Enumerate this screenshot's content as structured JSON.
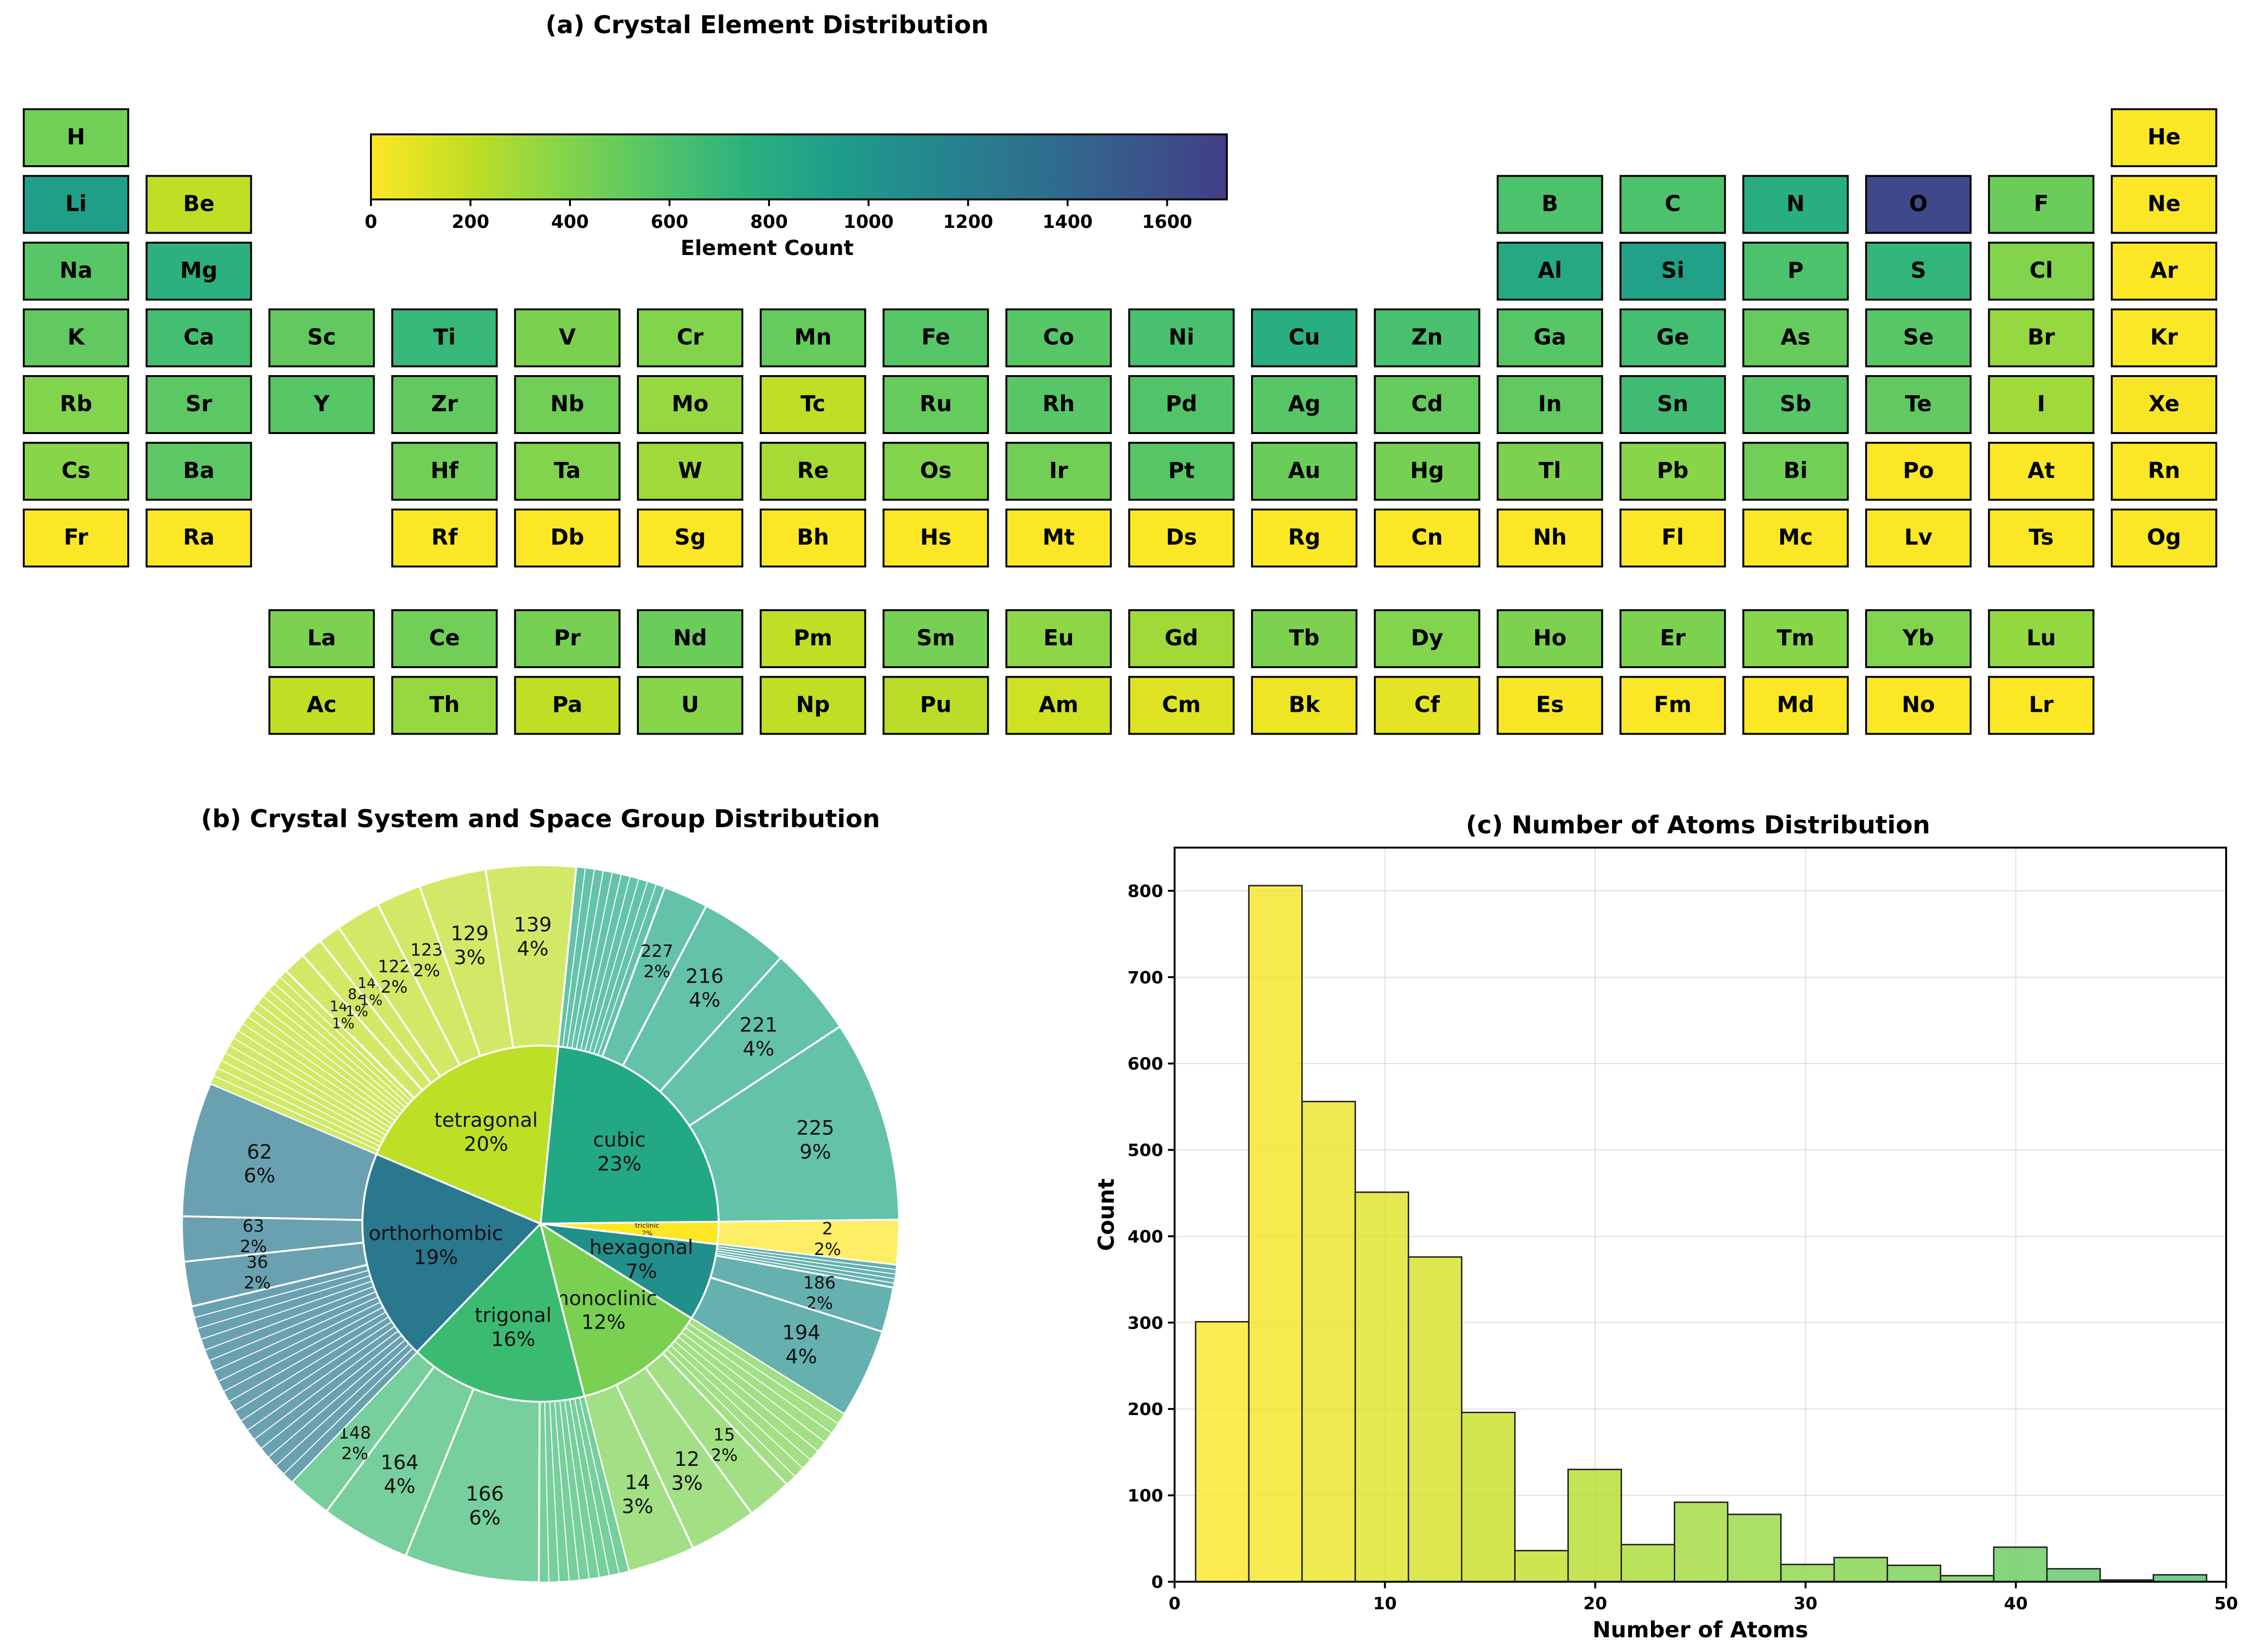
{
  "chart_data": [
    {
      "type": "heatmap",
      "title": "(a) Crystal Element Distribution",
      "colorbar": {
        "label": "Element Count",
        "min": 0,
        "max": 1720,
        "ticks": [
          0,
          200,
          400,
          600,
          800,
          1000,
          1200,
          1400,
          1600
        ],
        "colormap": "viridis_r"
      },
      "elements": [
        {
          "sym": "H",
          "row": 1,
          "col": 1,
          "count": 460
        },
        {
          "sym": "He",
          "row": 1,
          "col": 18,
          "count": 10
        },
        {
          "sym": "Li",
          "row": 2,
          "col": 1,
          "count": 920
        },
        {
          "sym": "Be",
          "row": 2,
          "col": 2,
          "count": 200
        },
        {
          "sym": "B",
          "row": 2,
          "col": 13,
          "count": 600
        },
        {
          "sym": "C",
          "row": 2,
          "col": 14,
          "count": 600
        },
        {
          "sym": "N",
          "row": 2,
          "col": 15,
          "count": 780
        },
        {
          "sym": "O",
          "row": 2,
          "col": 16,
          "count": 1650
        },
        {
          "sym": "F",
          "row": 2,
          "col": 17,
          "count": 480
        },
        {
          "sym": "Ne",
          "row": 2,
          "col": 18,
          "count": 5
        },
        {
          "sym": "Na",
          "row": 3,
          "col": 1,
          "count": 560
        },
        {
          "sym": "Mg",
          "row": 3,
          "col": 2,
          "count": 760
        },
        {
          "sym": "Al",
          "row": 3,
          "col": 13,
          "count": 830
        },
        {
          "sym": "Si",
          "row": 3,
          "col": 14,
          "count": 900
        },
        {
          "sym": "P",
          "row": 3,
          "col": 15,
          "count": 600
        },
        {
          "sym": "S",
          "row": 3,
          "col": 16,
          "count": 720
        },
        {
          "sym": "Cl",
          "row": 3,
          "col": 17,
          "count": 400
        },
        {
          "sym": "Ar",
          "row": 3,
          "col": 18,
          "count": 5
        },
        {
          "sym": "K",
          "row": 4,
          "col": 1,
          "count": 520
        },
        {
          "sym": "Ca",
          "row": 4,
          "col": 2,
          "count": 640
        },
        {
          "sym": "Sc",
          "row": 4,
          "col": 3,
          "count": 520
        },
        {
          "sym": "Ti",
          "row": 4,
          "col": 4,
          "count": 700
        },
        {
          "sym": "V",
          "row": 4,
          "col": 5,
          "count": 420
        },
        {
          "sym": "Cr",
          "row": 4,
          "col": 6,
          "count": 400
        },
        {
          "sym": "Mn",
          "row": 4,
          "col": 7,
          "count": 500
        },
        {
          "sym": "Fe",
          "row": 4,
          "col": 8,
          "count": 560
        },
        {
          "sym": "Co",
          "row": 4,
          "col": 9,
          "count": 560
        },
        {
          "sym": "Ni",
          "row": 4,
          "col": 10,
          "count": 620
        },
        {
          "sym": "Cu",
          "row": 4,
          "col": 11,
          "count": 780
        },
        {
          "sym": "Zn",
          "row": 4,
          "col": 12,
          "count": 620
        },
        {
          "sym": "Ga",
          "row": 4,
          "col": 13,
          "count": 560
        },
        {
          "sym": "Ge",
          "row": 4,
          "col": 14,
          "count": 640
        },
        {
          "sym": "As",
          "row": 4,
          "col": 15,
          "count": 500
        },
        {
          "sym": "Se",
          "row": 4,
          "col": 16,
          "count": 560
        },
        {
          "sym": "Br",
          "row": 4,
          "col": 17,
          "count": 330
        },
        {
          "sym": "Kr",
          "row": 4,
          "col": 18,
          "count": 10
        },
        {
          "sym": "Rb",
          "row": 5,
          "col": 1,
          "count": 400
        },
        {
          "sym": "Sr",
          "row": 5,
          "col": 2,
          "count": 540
        },
        {
          "sym": "Y",
          "row": 5,
          "col": 3,
          "count": 560
        },
        {
          "sym": "Zr",
          "row": 5,
          "col": 4,
          "count": 520
        },
        {
          "sym": "Nb",
          "row": 5,
          "col": 5,
          "count": 460
        },
        {
          "sym": "Mo",
          "row": 5,
          "col": 6,
          "count": 330
        },
        {
          "sym": "Tc",
          "row": 5,
          "col": 7,
          "count": 200
        },
        {
          "sym": "Ru",
          "row": 5,
          "col": 8,
          "count": 500
        },
        {
          "sym": "Rh",
          "row": 5,
          "col": 9,
          "count": 560
        },
        {
          "sym": "Pd",
          "row": 5,
          "col": 10,
          "count": 580
        },
        {
          "sym": "Ag",
          "row": 5,
          "col": 11,
          "count": 560
        },
        {
          "sym": "Cd",
          "row": 5,
          "col": 12,
          "count": 500
        },
        {
          "sym": "In",
          "row": 5,
          "col": 13,
          "count": 520
        },
        {
          "sym": "Sn",
          "row": 5,
          "col": 14,
          "count": 660
        },
        {
          "sym": "Sb",
          "row": 5,
          "col": 15,
          "count": 560
        },
        {
          "sym": "Te",
          "row": 5,
          "col": 16,
          "count": 520
        },
        {
          "sym": "I",
          "row": 5,
          "col": 17,
          "count": 300
        },
        {
          "sym": "Xe",
          "row": 5,
          "col": 18,
          "count": 20
        },
        {
          "sym": "Cs",
          "row": 6,
          "col": 1,
          "count": 380
        },
        {
          "sym": "Ba",
          "row": 6,
          "col": 2,
          "count": 540
        },
        {
          "sym": "Hf",
          "row": 6,
          "col": 4,
          "count": 460
        },
        {
          "sym": "Ta",
          "row": 6,
          "col": 5,
          "count": 400
        },
        {
          "sym": "W",
          "row": 6,
          "col": 6,
          "count": 300
        },
        {
          "sym": "Re",
          "row": 6,
          "col": 7,
          "count": 280
        },
        {
          "sym": "Os",
          "row": 6,
          "col": 8,
          "count": 400
        },
        {
          "sym": "Ir",
          "row": 6,
          "col": 9,
          "count": 460
        },
        {
          "sym": "Pt",
          "row": 6,
          "col": 10,
          "count": 560
        },
        {
          "sym": "Au",
          "row": 6,
          "col": 11,
          "count": 480
        },
        {
          "sym": "Hg",
          "row": 6,
          "col": 12,
          "count": 440
        },
        {
          "sym": "Tl",
          "row": 6,
          "col": 13,
          "count": 420
        },
        {
          "sym": "Pb",
          "row": 6,
          "col": 14,
          "count": 380
        },
        {
          "sym": "Bi",
          "row": 6,
          "col": 15,
          "count": 460
        },
        {
          "sym": "Po",
          "row": 6,
          "col": 16,
          "count": 5
        },
        {
          "sym": "At",
          "row": 6,
          "col": 17,
          "count": 5
        },
        {
          "sym": "Rn",
          "row": 6,
          "col": 18,
          "count": 5
        },
        {
          "sym": "Fr",
          "row": 7,
          "col": 1,
          "count": 5
        },
        {
          "sym": "Ra",
          "row": 7,
          "col": 2,
          "count": 5
        },
        {
          "sym": "Rf",
          "row": 7,
          "col": 4,
          "count": 5
        },
        {
          "sym": "Db",
          "row": 7,
          "col": 5,
          "count": 5
        },
        {
          "sym": "Sg",
          "row": 7,
          "col": 6,
          "count": 5
        },
        {
          "sym": "Bh",
          "row": 7,
          "col": 7,
          "count": 5
        },
        {
          "sym": "Hs",
          "row": 7,
          "col": 8,
          "count": 5
        },
        {
          "sym": "Mt",
          "row": 7,
          "col": 9,
          "count": 5
        },
        {
          "sym": "Ds",
          "row": 7,
          "col": 10,
          "count": 5
        },
        {
          "sym": "Rg",
          "row": 7,
          "col": 11,
          "count": 5
        },
        {
          "sym": "Cn",
          "row": 7,
          "col": 12,
          "count": 5
        },
        {
          "sym": "Nh",
          "row": 7,
          "col": 13,
          "count": 5
        },
        {
          "sym": "Fl",
          "row": 7,
          "col": 14,
          "count": 5
        },
        {
          "sym": "Mc",
          "row": 7,
          "col": 15,
          "count": 5
        },
        {
          "sym": "Lv",
          "row": 7,
          "col": 16,
          "count": 5
        },
        {
          "sym": "Ts",
          "row": 7,
          "col": 17,
          "count": 5
        },
        {
          "sym": "Og",
          "row": 7,
          "col": 18,
          "count": 5
        },
        {
          "sym": "La",
          "row": 9,
          "col": 3,
          "count": 420
        },
        {
          "sym": "Ce",
          "row": 9,
          "col": 4,
          "count": 460
        },
        {
          "sym": "Pr",
          "row": 9,
          "col": 5,
          "count": 440
        },
        {
          "sym": "Nd",
          "row": 9,
          "col": 6,
          "count": 480
        },
        {
          "sym": "Pm",
          "row": 9,
          "col": 7,
          "count": 200
        },
        {
          "sym": "Sm",
          "row": 9,
          "col": 8,
          "count": 440
        },
        {
          "sym": "Eu",
          "row": 9,
          "col": 9,
          "count": 360
        },
        {
          "sym": "Gd",
          "row": 9,
          "col": 10,
          "count": 300
        },
        {
          "sym": "Tb",
          "row": 9,
          "col": 11,
          "count": 420
        },
        {
          "sym": "Dy",
          "row": 9,
          "col": 12,
          "count": 400
        },
        {
          "sym": "Ho",
          "row": 9,
          "col": 13,
          "count": 420
        },
        {
          "sym": "Er",
          "row": 9,
          "col": 14,
          "count": 420
        },
        {
          "sym": "Tm",
          "row": 9,
          "col": 15,
          "count": 380
        },
        {
          "sym": "Yb",
          "row": 9,
          "col": 16,
          "count": 400
        },
        {
          "sym": "Lu",
          "row": 9,
          "col": 17,
          "count": 340
        },
        {
          "sym": "Ac",
          "row": 10,
          "col": 3,
          "count": 200
        },
        {
          "sym": "Th",
          "row": 10,
          "col": 4,
          "count": 330
        },
        {
          "sym": "Pa",
          "row": 10,
          "col": 5,
          "count": 200
        },
        {
          "sym": "U",
          "row": 10,
          "col": 6,
          "count": 380
        },
        {
          "sym": "Np",
          "row": 10,
          "col": 7,
          "count": 200
        },
        {
          "sym": "Pu",
          "row": 10,
          "col": 8,
          "count": 220
        },
        {
          "sym": "Am",
          "row": 10,
          "col": 9,
          "count": 150
        },
        {
          "sym": "Cm",
          "row": 10,
          "col": 10,
          "count": 100
        },
        {
          "sym": "Bk",
          "row": 10,
          "col": 11,
          "count": 50
        },
        {
          "sym": "Cf",
          "row": 10,
          "col": 12,
          "count": 80
        },
        {
          "sym": "Es",
          "row": 10,
          "col": 13,
          "count": 20
        },
        {
          "sym": "Fm",
          "row": 10,
          "col": 14,
          "count": 10
        },
        {
          "sym": "Md",
          "row": 10,
          "col": 15,
          "count": 5
        },
        {
          "sym": "No",
          "row": 10,
          "col": 16,
          "count": 5
        },
        {
          "sym": "Lr",
          "row": 10,
          "col": 17,
          "count": 5
        }
      ]
    },
    {
      "type": "pie",
      "subtype": "sunburst",
      "title": "(b) Crystal System and Space Group Distribution",
      "systems": [
        {
          "name": "cubic",
          "label": "cubic\n23%",
          "pct": 23,
          "color": "#22a884",
          "groups": [
            {
              "sg": "227",
              "pct": 2,
              "label": "227\n2%"
            },
            {
              "sg": "216",
              "pct": 4,
              "label": "216\n4%"
            },
            {
              "sg": "221",
              "pct": 4,
              "label": "221\n4%"
            },
            {
              "sg": "225",
              "pct": 9,
              "label": "225\n9%"
            }
          ],
          "minor_count": 10
        },
        {
          "name": "triclinic",
          "label": "triclinic\n2%",
          "pct": 2,
          "color": "#fde725",
          "groups": [
            {
              "sg": "2",
              "pct": 2,
              "label": "2\n2%"
            }
          ],
          "minor_count": 1
        },
        {
          "name": "hexagonal",
          "label": "hexagonal\n7%",
          "pct": 7,
          "color": "#21908d",
          "groups": [
            {
              "sg": "186",
              "pct": 2,
              "label": "186\n2%"
            },
            {
              "sg": "194",
              "pct": 4,
              "label": "194\n4%"
            }
          ],
          "minor_count": 5
        },
        {
          "name": "monoclinic",
          "label": "monoclinic\n12%",
          "pct": 12,
          "color": "#7ad151",
          "groups": [
            {
              "sg": "15",
              "pct": 2,
              "label": "15\n2%"
            },
            {
              "sg": "12",
              "pct": 3,
              "label": "12\n3%"
            },
            {
              "sg": "14",
              "pct": 3,
              "label": "14\n3%"
            }
          ],
          "minor_count": 8
        },
        {
          "name": "trigonal",
          "label": "trigonal\n16%",
          "pct": 16,
          "color": "#3bbb72",
          "groups": [
            {
              "sg": "166",
              "pct": 6,
              "label": "166\n6%"
            },
            {
              "sg": "164",
              "pct": 4,
              "label": "164\n4%"
            },
            {
              "sg": "148",
              "pct": 2,
              "label": "148\n2%"
            }
          ],
          "minor_count": 9
        },
        {
          "name": "orthorhombic",
          "label": "orthorhombic\n19%",
          "pct": 19,
          "color": "#2a788e",
          "groups": [
            {
              "sg": "36",
              "pct": 2,
              "label": "36\n2%"
            },
            {
              "sg": "63",
              "pct": 2,
              "label": "63\n2%"
            },
            {
              "sg": "62",
              "pct": 6,
              "label": "62\n6%"
            }
          ],
          "minor_count": 18
        },
        {
          "name": "tetragonal",
          "label": "tetragonal\n20%",
          "pct": 20,
          "color": "#bddf26",
          "groups": [
            {
              "sg": "140",
              "pct": 1,
              "label": "140\n1%"
            },
            {
              "sg": "82",
              "pct": 1,
              "label": "82\n1%"
            },
            {
              "sg": "141",
              "pct": 1,
              "label": "141\n1%"
            },
            {
              "sg": "122",
              "pct": 2,
              "label": "122\n2%"
            },
            {
              "sg": "123",
              "pct": 2,
              "label": "123\n2%"
            },
            {
              "sg": "129",
              "pct": 3,
              "label": "129\n3%"
            },
            {
              "sg": "139",
              "pct": 4,
              "label": "139\n4%"
            }
          ],
          "minor_count": 16
        }
      ]
    },
    {
      "type": "bar",
      "subtype": "histogram",
      "title": "(c) Number of Atoms Distribution",
      "xlabel": "Number of Atoms",
      "ylabel": "Count",
      "xlim": [
        0,
        50
      ],
      "ylim": [
        0,
        850
      ],
      "xticks": [
        0,
        10,
        20,
        30,
        40,
        50
      ],
      "yticks": [
        0,
        100,
        200,
        300,
        400,
        500,
        600,
        700,
        800
      ],
      "bin_edges": [
        1,
        3.53,
        6.06,
        8.59,
        11.12,
        13.65,
        16.18,
        18.71,
        21.24,
        23.77,
        26.3,
        28.83,
        31.36,
        33.89,
        36.42,
        38.95,
        41.48,
        44.01,
        46.54,
        49.07
      ],
      "values": [
        301,
        806,
        556,
        451,
        376,
        196,
        36,
        130,
        43,
        92,
        78,
        20,
        28,
        19,
        7,
        40,
        15,
        2,
        8
      ]
    }
  ]
}
